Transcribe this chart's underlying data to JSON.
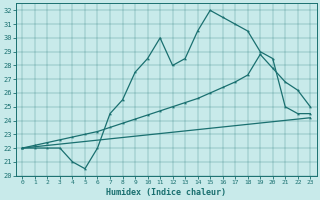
{
  "xlabel": "Humidex (Indice chaleur)",
  "xlim": [
    -0.5,
    23.5
  ],
  "ylim": [
    20,
    32.5
  ],
  "xticks": [
    0,
    1,
    2,
    3,
    4,
    5,
    6,
    7,
    8,
    9,
    10,
    11,
    12,
    13,
    14,
    15,
    16,
    17,
    18,
    19,
    20,
    21,
    22,
    23
  ],
  "yticks": [
    20,
    21,
    22,
    23,
    24,
    25,
    26,
    27,
    28,
    29,
    30,
    31,
    32
  ],
  "bg_color": "#c8eaea",
  "line_color": "#1a7070",
  "line1_x": [
    0,
    1,
    2,
    3,
    4,
    5,
    6,
    7,
    8,
    9,
    10,
    11,
    12,
    13,
    14,
    15,
    16,
    17,
    18,
    19,
    20,
    21,
    22,
    23
  ],
  "line1_y": [
    22,
    22,
    22,
    22,
    21,
    20.5,
    22,
    24.5,
    25.5,
    27.5,
    28.5,
    30,
    28,
    28.5,
    30.5,
    32,
    31.5,
    31,
    30.5,
    29,
    28.5,
    25,
    24.5,
    24.5
  ],
  "line2_x": [
    0,
    1,
    2,
    3,
    4,
    5,
    6,
    7,
    8,
    9,
    10,
    11,
    12,
    13,
    14,
    15,
    16,
    17,
    18,
    19,
    20,
    21,
    22,
    23
  ],
  "line2_y": [
    22,
    22.2,
    22.4,
    22.6,
    22.8,
    23.0,
    23.2,
    23.5,
    23.8,
    24.1,
    24.4,
    24.7,
    25.0,
    25.3,
    25.6,
    26.0,
    26.4,
    26.8,
    27.3,
    28.8,
    27.8,
    26.8,
    26.2,
    25.0
  ],
  "line3_x": [
    0,
    23
  ],
  "line3_y": [
    22,
    24.2
  ]
}
